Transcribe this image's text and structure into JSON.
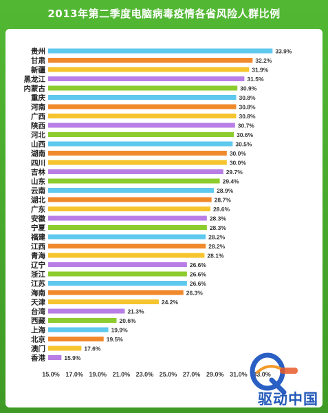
{
  "colors": {
    "frame": "#4caf2e",
    "series": [
      "#5ec8ee",
      "#f0892c",
      "#f6c42e",
      "#b87ee6",
      "#8dcc2f"
    ]
  },
  "watermark": {
    "text": "驱动中国",
    "logo": "Q-360-logo"
  },
  "chart_data": {
    "type": "bar",
    "orientation": "horizontal",
    "title": "2013年第二季度电脑病毒疫情各省风险人群比例",
    "categories": [
      "贵州",
      "甘肃",
      "新疆",
      "黑龙江",
      "内蒙古",
      "重庆",
      "河南",
      "广西",
      "陕西",
      "河北",
      "山西",
      "湖南",
      "四川",
      "吉林",
      "山东",
      "云南",
      "湖北",
      "广东",
      "安徽",
      "宁夏",
      "福建",
      "江西",
      "青海",
      "辽宁",
      "浙江",
      "江苏",
      "海南",
      "天津",
      "台湾",
      "西藏",
      "上海",
      "北京",
      "澳门",
      "香港"
    ],
    "values": [
      33.9,
      32.2,
      31.9,
      31.5,
      30.9,
      30.8,
      30.8,
      30.8,
      30.7,
      30.6,
      30.5,
      30.0,
      30.0,
      29.7,
      29.4,
      28.9,
      28.7,
      28.6,
      28.3,
      28.3,
      28.2,
      28.2,
      28.1,
      26.6,
      26.6,
      26.6,
      26.3,
      24.2,
      21.3,
      20.6,
      19.9,
      19.5,
      17.6,
      15.9
    ],
    "value_labels": [
      "33.9%",
      "32.2%",
      "31.9%",
      "31.5%",
      "30.9%",
      "30.8%",
      "30.8%",
      "30.8%",
      "30.7%",
      "30.6%",
      "30.5%",
      "30.0%",
      "30.0%",
      "29.7%",
      "29.4%",
      "28.9%",
      "28.7%",
      "28.6%",
      "28.3%",
      "28.3%",
      "28.2%",
      "28.2%",
      "28.1%",
      "26.6%",
      "26.6%",
      "26.6%",
      "26.3%",
      "24.2%",
      "21.3%",
      "20.6%",
      "19.9%",
      "19.5%",
      "17.6%",
      "15.9%"
    ],
    "xlim": [
      15.0,
      33.0
    ],
    "xticks": [
      "15.0%",
      "17.0%",
      "19.0%",
      "21.0%",
      "23.0%",
      "25.0%",
      "27.0%",
      "29.0%",
      "31.0%",
      "33.0%"
    ],
    "xlabel": "",
    "ylabel": "",
    "grid": false,
    "legend": "none"
  }
}
